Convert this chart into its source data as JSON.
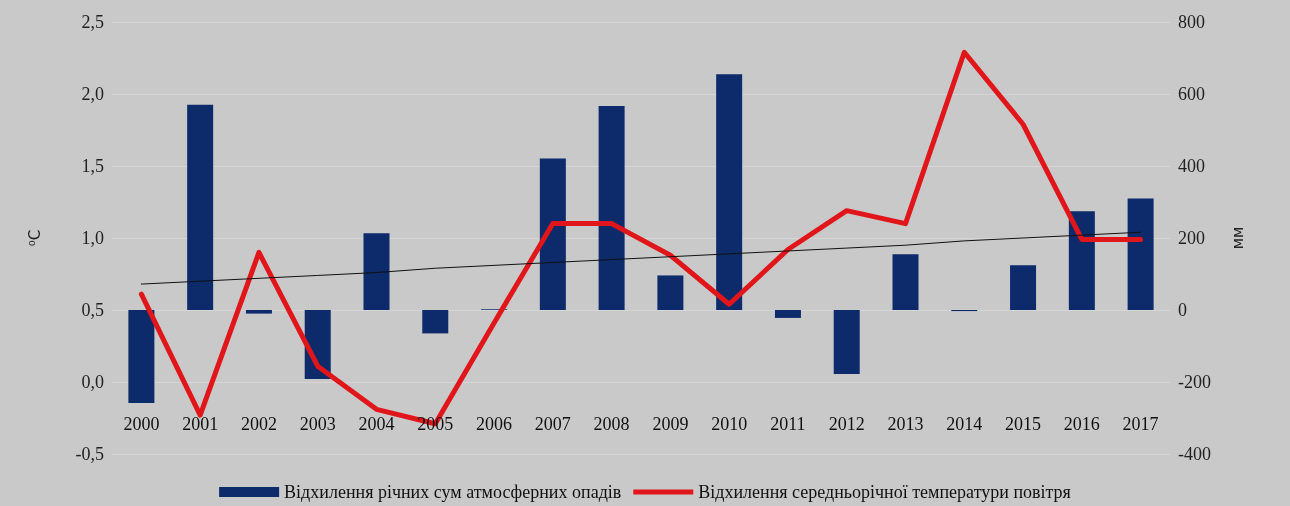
{
  "chart_data": {
    "type": "bar",
    "ylabel": "⁰C",
    "y2label": "мм",
    "categories": [
      "2000",
      "2001",
      "2002",
      "2003",
      "2004",
      "2005",
      "2006",
      "2007",
      "2008",
      "2009",
      "2010",
      "2011",
      "2012",
      "2013",
      "2014",
      "2015",
      "2016",
      "2017"
    ],
    "series": [
      {
        "name": "Відхилення річних сум атмосферних опадів",
        "axis": "y2",
        "color": "#0d2a6b",
        "values": [
          -258,
          570,
          -10,
          -192,
          213,
          -65,
          2,
          421,
          567,
          96,
          655,
          -22,
          -178,
          155,
          -3,
          124,
          274,
          310
        ]
      },
      {
        "name": "Відхилення середньорічної температури повітря",
        "type": "line",
        "axis": "y",
        "color": "#e0161b",
        "values": [
          0.61,
          -0.23,
          0.9,
          0.11,
          -0.19,
          -0.29,
          0.41,
          1.1,
          1.1,
          0.88,
          0.54,
          0.92,
          1.19,
          1.1,
          2.29,
          1.79,
          0.99,
          0.99
        ]
      },
      {
        "type": "line",
        "axis": "y",
        "color": "#111111",
        "values": [
          0.68,
          0.7,
          0.72,
          0.74,
          0.76,
          0.79,
          0.81,
          0.83,
          0.85,
          0.87,
          0.89,
          0.91,
          0.93,
          0.95,
          0.98,
          1.0,
          1.02,
          1.04
        ]
      }
    ],
    "ylim": [
      -0.5,
      2.5
    ],
    "yticks": [
      {
        "value": -0.5,
        "label": "-0,5"
      },
      {
        "value": 0,
        "label": "0,0"
      },
      {
        "value": 0.5,
        "label": "0,5"
      },
      {
        "value": 1,
        "label": "1,0"
      },
      {
        "value": 1.5,
        "label": "1,5"
      },
      {
        "value": 2,
        "label": "2,0"
      },
      {
        "value": 2.5,
        "label": "2,5"
      }
    ],
    "y2lim": [
      -400,
      800
    ],
    "y2ticks": [
      -400,
      -200,
      0,
      200,
      400,
      600,
      800
    ],
    "grid": "y",
    "legend": "bottom",
    "marker": "none",
    "line_style": "solid"
  }
}
